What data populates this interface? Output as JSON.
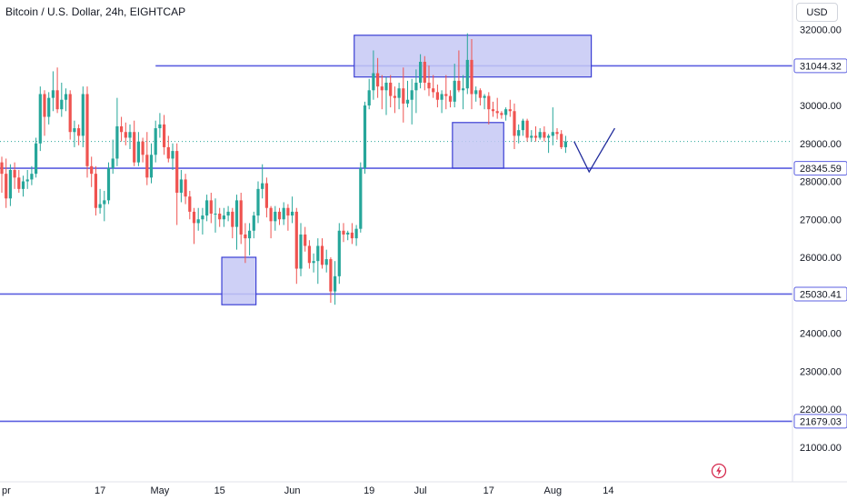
{
  "header": {
    "title": "Bitcoin / U.S. Dollar, 24h, EIGHTCAP",
    "currency_button": "USD"
  },
  "colors": {
    "up": "#26a69a",
    "down": "#ef5350",
    "level_line": "#5b5fe0",
    "zone_fill": "#c5c8f5",
    "zone_stroke": "#3b3fd4",
    "axis_text": "#131722",
    "current_price_line": "#26a69a"
  },
  "chart_data": {
    "type": "candlestick",
    "ylim": [
      20000,
      32500
    ],
    "y_ticks": [
      32000,
      30000,
      29000,
      28000,
      27000,
      26000,
      25000,
      24000,
      23000,
      22000,
      21000
    ],
    "x_tick_labels": [
      {
        "label": "pr",
        "day": 0
      },
      {
        "label": "17",
        "day": 23
      },
      {
        "label": "May",
        "day": 37
      },
      {
        "label": "15",
        "day": 51
      },
      {
        "label": "Jun",
        "day": 68
      },
      {
        "label": "19",
        "day": 86
      },
      {
        "label": "Jul",
        "day": 98
      },
      {
        "label": "17",
        "day": 114
      },
      {
        "label": "Aug",
        "day": 129
      },
      {
        "label": "14",
        "day": 142
      }
    ],
    "levels": [
      {
        "price": 31044.32,
        "label": "31044.32",
        "from_day": 36
      },
      {
        "price": 28345.59,
        "label": "28345.59",
        "from_day": -7
      },
      {
        "price": 25030.41,
        "label": "25030.41",
        "from_day": -7
      },
      {
        "price": 21679.03,
        "label": "21679.03",
        "from_day": -7
      }
    ],
    "current_price": 29050,
    "zones": [
      {
        "x1": 82.5,
        "x2": 138,
        "y_top": 31850,
        "y_bottom": 30750
      },
      {
        "x1": 105.5,
        "x2": 117.5,
        "y_top": 29550,
        "y_bottom": 28350
      },
      {
        "x1": 51.5,
        "x2": 59.5,
        "y_top": 26000,
        "y_bottom": 24750
      }
    ],
    "projection": [
      [
        134,
        29050
      ],
      [
        137.5,
        28250
      ],
      [
        143.5,
        29400
      ]
    ],
    "candles": [
      [
        28500,
        28650,
        27700,
        28200
      ],
      [
        28200,
        28600,
        27300,
        27550
      ],
      [
        27550,
        28450,
        27350,
        28300
      ],
      [
        28300,
        28500,
        27800,
        28100
      ],
      [
        28100,
        28300,
        27700,
        27800
      ],
      [
        27800,
        28150,
        27600,
        28000
      ],
      [
        28000,
        28300,
        27800,
        28050
      ],
      [
        28050,
        28400,
        27900,
        28200
      ],
      [
        28200,
        29150,
        28100,
        29000
      ],
      [
        29000,
        30500,
        28800,
        30300
      ],
      [
        30300,
        30400,
        29200,
        29700
      ],
      [
        29700,
        30350,
        29500,
        30200
      ],
      [
        30200,
        30900,
        29850,
        30400
      ],
      [
        30400,
        31000,
        29800,
        29900
      ],
      [
        29900,
        30600,
        29700,
        30150
      ],
      [
        30150,
        30450,
        29850,
        30300
      ],
      [
        30300,
        30400,
        29100,
        29300
      ],
      [
        29300,
        29600,
        28900,
        29400
      ],
      [
        29400,
        29500,
        28950,
        29200
      ],
      [
        29200,
        30500,
        28900,
        30300
      ],
      [
        30300,
        30500,
        28100,
        28400
      ],
      [
        28400,
        28650,
        27850,
        28200
      ],
      [
        28200,
        28400,
        27100,
        27300
      ],
      [
        27300,
        27800,
        27150,
        27400
      ],
      [
        27400,
        27750,
        26950,
        27500
      ],
      [
        27500,
        28500,
        27400,
        28350
      ],
      [
        28350,
        29100,
        28200,
        28600
      ],
      [
        28600,
        30200,
        28400,
        29450
      ],
      [
        29450,
        29700,
        29050,
        29300
      ],
      [
        29300,
        29550,
        28950,
        29150
      ],
      [
        29150,
        29500,
        28850,
        29300
      ],
      [
        29300,
        29600,
        28400,
        28500
      ],
      [
        28500,
        29300,
        28400,
        29050
      ],
      [
        29050,
        29150,
        28500,
        28700
      ],
      [
        28700,
        29300,
        27900,
        28100
      ],
      [
        28100,
        29000,
        27950,
        28700
      ],
      [
        28700,
        29600,
        28500,
        29400
      ],
      [
        29400,
        29800,
        29150,
        29500
      ],
      [
        29500,
        29750,
        28700,
        28900
      ],
      [
        28900,
        29200,
        28500,
        28600
      ],
      [
        28600,
        29000,
        28300,
        28800
      ],
      [
        28800,
        29000,
        26850,
        27700
      ],
      [
        27700,
        28300,
        27450,
        28050
      ],
      [
        28050,
        28200,
        27400,
        27600
      ],
      [
        27600,
        27750,
        27000,
        27200
      ],
      [
        27200,
        27300,
        26350,
        26900
      ],
      [
        26900,
        27300,
        26700,
        27000
      ],
      [
        27000,
        27300,
        26600,
        27100
      ],
      [
        27100,
        27650,
        26950,
        27500
      ],
      [
        27500,
        27700,
        26900,
        27150
      ],
      [
        27150,
        27550,
        26650,
        27150
      ],
      [
        27150,
        27300,
        26800,
        27000
      ],
      [
        27000,
        27300,
        26800,
        27100
      ],
      [
        27100,
        27350,
        26950,
        27200
      ],
      [
        27200,
        27300,
        26500,
        26800
      ],
      [
        26800,
        27650,
        26200,
        27500
      ],
      [
        27500,
        27700,
        26350,
        26600
      ],
      [
        26600,
        26900,
        25850,
        26500
      ],
      [
        26500,
        26900,
        26050,
        26700
      ],
      [
        26700,
        27200,
        26500,
        27100
      ],
      [
        27100,
        28000,
        26900,
        27800
      ],
      [
        27800,
        28450,
        27550,
        27950
      ],
      [
        27950,
        28100,
        27050,
        27300
      ],
      [
        27300,
        27350,
        26500,
        26950
      ],
      [
        26950,
        27350,
        26700,
        27200
      ],
      [
        27200,
        27300,
        26850,
        27000
      ],
      [
        27000,
        27450,
        26850,
        27300
      ],
      [
        27300,
        27400,
        26700,
        27100
      ],
      [
        27100,
        27600,
        26900,
        27200
      ],
      [
        27200,
        27300,
        25300,
        25700
      ],
      [
        25700,
        26900,
        25500,
        26600
      ],
      [
        26600,
        26800,
        26150,
        26300
      ],
      [
        26300,
        26450,
        25700,
        25850
      ],
      [
        25850,
        26100,
        25600,
        25900
      ],
      [
        25900,
        26500,
        25300,
        26300
      ],
      [
        26300,
        26500,
        25700,
        25800
      ],
      [
        25800,
        26200,
        25600,
        25950
      ],
      [
        25950,
        26000,
        24800,
        25100
      ],
      [
        25100,
        25900,
        24750,
        25500
      ],
      [
        25500,
        26900,
        25300,
        26700
      ],
      [
        26700,
        26900,
        26400,
        26600
      ],
      [
        26600,
        26700,
        26450,
        26650
      ],
      [
        26650,
        26900,
        26350,
        26500
      ],
      [
        26500,
        26850,
        26300,
        26750
      ],
      [
        26750,
        28500,
        26650,
        28350
      ],
      [
        28350,
        30100,
        28200,
        30000
      ],
      [
        30000,
        30700,
        29900,
        30400
      ],
      [
        30400,
        31450,
        30150,
        30850
      ],
      [
        30850,
        31250,
        30200,
        30500
      ],
      [
        30500,
        30800,
        29900,
        30400
      ],
      [
        30400,
        30750,
        29750,
        30600
      ],
      [
        30600,
        30800,
        29950,
        30250
      ],
      [
        30250,
        30500,
        29800,
        30200
      ],
      [
        30200,
        30600,
        29900,
        30450
      ],
      [
        30450,
        31000,
        29550,
        30050
      ],
      [
        30050,
        30650,
        29950,
        30150
      ],
      [
        30150,
        30700,
        29500,
        30400
      ],
      [
        30400,
        30950,
        29800,
        30600
      ],
      [
        30600,
        31350,
        30450,
        31150
      ],
      [
        31150,
        31300,
        30400,
        30600
      ],
      [
        30600,
        31050,
        30250,
        30450
      ],
      [
        30450,
        30800,
        30200,
        30350
      ],
      [
        30350,
        30550,
        29950,
        30150
      ],
      [
        30150,
        30400,
        29800,
        30300
      ],
      [
        30300,
        30800,
        29900,
        30250
      ],
      [
        30250,
        30400,
        29950,
        30100
      ],
      [
        30100,
        31100,
        29950,
        30650
      ],
      [
        30650,
        31450,
        30350,
        30400
      ],
      [
        30400,
        30800,
        29900,
        30450
      ],
      [
        30450,
        31900,
        30300,
        31200
      ],
      [
        31200,
        31750,
        29900,
        30300
      ],
      [
        30300,
        30500,
        30100,
        30400
      ],
      [
        30400,
        30450,
        30000,
        30200
      ],
      [
        30200,
        30300,
        29900,
        30250
      ],
      [
        30250,
        30350,
        29500,
        29900
      ],
      [
        29900,
        30100,
        29700,
        29850
      ],
      [
        29850,
        30200,
        29650,
        29800
      ],
      [
        29800,
        29850,
        29650,
        29750
      ],
      [
        29750,
        29950,
        29600,
        29900
      ],
      [
        29900,
        30150,
        29700,
        29850
      ],
      [
        29850,
        30050,
        28850,
        29200
      ],
      [
        29200,
        29500,
        29000,
        29350
      ],
      [
        29350,
        29650,
        29200,
        29600
      ],
      [
        29600,
        29650,
        29050,
        29150
      ],
      [
        29150,
        29350,
        29050,
        29200
      ],
      [
        29200,
        29450,
        29050,
        29150
      ],
      [
        29150,
        29400,
        29100,
        29300
      ],
      [
        29300,
        29450,
        29050,
        29150
      ],
      [
        29150,
        29250,
        28750,
        29200
      ],
      [
        29200,
        29950,
        28950,
        29300
      ],
      [
        29300,
        29400,
        29100,
        29250
      ],
      [
        29250,
        29350,
        28850,
        28900
      ],
      [
        28900,
        29200,
        28750,
        29050
      ]
    ]
  }
}
